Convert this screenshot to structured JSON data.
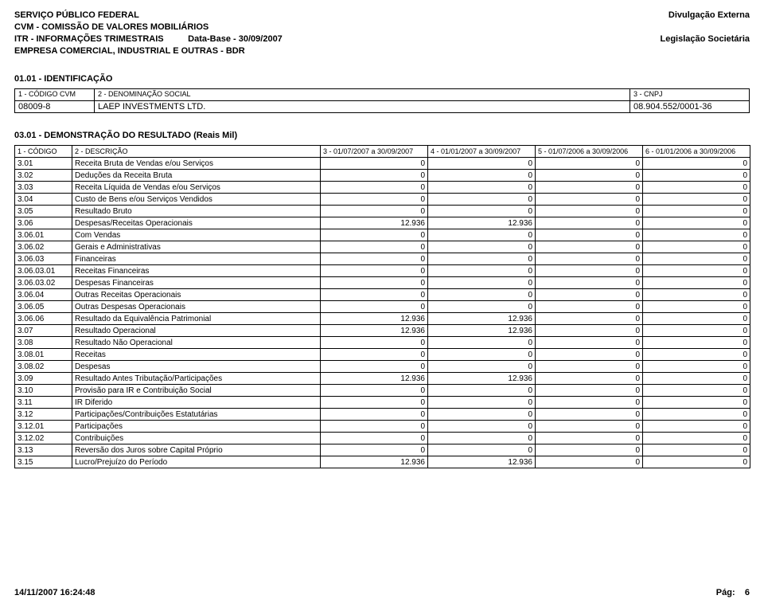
{
  "header": {
    "l1": "SERVIÇO PÚBLICO FEDERAL",
    "l2": "CVM - COMISSÃO DE VALORES MOBILIÁRIOS",
    "l3a": "ITR - INFORMAÇÕES TRIMESTRAIS",
    "l3b": "Data-Base - 30/09/2007",
    "l4": "EMPRESA COMERCIAL, INDUSTRIAL E OUTRAS - BDR",
    "r1": "Divulgação Externa",
    "r2": "Legislação Societária"
  },
  "ident": {
    "title": "01.01 - IDENTIFICAÇÃO",
    "c1_label": "1 - CÓDIGO CVM",
    "c1_value": "08009-8",
    "c2_label": "2 - DENOMINAÇÃO SOCIAL",
    "c2_value": "LAEP INVESTMENTS LTD.",
    "c3_label": "3 - CNPJ",
    "c3_value": "08.904.552/0001-36"
  },
  "result": {
    "title": "03.01 - DEMONSTRAÇÃO DO RESULTADO (Reais Mil)",
    "h1": "1 - CÓDIGO",
    "h2": "2 - DESCRIÇÃO",
    "h3": "3 - 01/07/2007 a 30/09/2007",
    "h4": "4 - 01/01/2007 a 30/09/2007",
    "h5": "5 - 01/07/2006 a 30/09/2006",
    "h6": "6 - 01/01/2006 a 30/09/2006",
    "rows": [
      {
        "code": "3.01",
        "desc": "Receita Bruta de Vendas e/ou Serviços",
        "v1": "0",
        "v2": "0",
        "v3": "0",
        "v4": "0"
      },
      {
        "code": "3.02",
        "desc": "Deduções da Receita Bruta",
        "v1": "0",
        "v2": "0",
        "v3": "0",
        "v4": "0"
      },
      {
        "code": "3.03",
        "desc": "Receita Líquida de Vendas e/ou Serviços",
        "v1": "0",
        "v2": "0",
        "v3": "0",
        "v4": "0"
      },
      {
        "code": "3.04",
        "desc": "Custo de Bens e/ou Serviços Vendidos",
        "v1": "0",
        "v2": "0",
        "v3": "0",
        "v4": "0"
      },
      {
        "code": "3.05",
        "desc": "Resultado Bruto",
        "v1": "0",
        "v2": "0",
        "v3": "0",
        "v4": "0"
      },
      {
        "code": "3.06",
        "desc": "Despesas/Receitas Operacionais",
        "v1": "12.936",
        "v2": "12.936",
        "v3": "0",
        "v4": "0"
      },
      {
        "code": "3.06.01",
        "desc": "Com Vendas",
        "v1": "0",
        "v2": "0",
        "v3": "0",
        "v4": "0"
      },
      {
        "code": "3.06.02",
        "desc": "Gerais e Administrativas",
        "v1": "0",
        "v2": "0",
        "v3": "0",
        "v4": "0"
      },
      {
        "code": "3.06.03",
        "desc": "Financeiras",
        "v1": "0",
        "v2": "0",
        "v3": "0",
        "v4": "0"
      },
      {
        "code": "3.06.03.01",
        "desc": "Receitas Financeiras",
        "v1": "0",
        "v2": "0",
        "v3": "0",
        "v4": "0"
      },
      {
        "code": "3.06.03.02",
        "desc": "Despesas Financeiras",
        "v1": "0",
        "v2": "0",
        "v3": "0",
        "v4": "0"
      },
      {
        "code": "3.06.04",
        "desc": "Outras Receitas Operacionais",
        "v1": "0",
        "v2": "0",
        "v3": "0",
        "v4": "0"
      },
      {
        "code": "3.06.05",
        "desc": "Outras Despesas Operacionais",
        "v1": "0",
        "v2": "0",
        "v3": "0",
        "v4": "0"
      },
      {
        "code": "3.06.06",
        "desc": "Resultado da Equivalência Patrimonial",
        "v1": "12.936",
        "v2": "12.936",
        "v3": "0",
        "v4": "0"
      },
      {
        "code": "3.07",
        "desc": "Resultado Operacional",
        "v1": "12.936",
        "v2": "12.936",
        "v3": "0",
        "v4": "0"
      },
      {
        "code": "3.08",
        "desc": "Resultado Não Operacional",
        "v1": "0",
        "v2": "0",
        "v3": "0",
        "v4": "0"
      },
      {
        "code": "3.08.01",
        "desc": "Receitas",
        "v1": "0",
        "v2": "0",
        "v3": "0",
        "v4": "0"
      },
      {
        "code": "3.08.02",
        "desc": "Despesas",
        "v1": "0",
        "v2": "0",
        "v3": "0",
        "v4": "0"
      },
      {
        "code": "3.09",
        "desc": "Resultado Antes Tributação/Participações",
        "v1": "12.936",
        "v2": "12.936",
        "v3": "0",
        "v4": "0"
      },
      {
        "code": "3.10",
        "desc": "Provisão para IR e Contribuição Social",
        "v1": "0",
        "v2": "0",
        "v3": "0",
        "v4": "0"
      },
      {
        "code": "3.11",
        "desc": "IR Diferido",
        "v1": "0",
        "v2": "0",
        "v3": "0",
        "v4": "0"
      },
      {
        "code": "3.12",
        "desc": "Participações/Contribuições Estatutárias",
        "v1": "0",
        "v2": "0",
        "v3": "0",
        "v4": "0"
      },
      {
        "code": "3.12.01",
        "desc": "Participações",
        "v1": "0",
        "v2": "0",
        "v3": "0",
        "v4": "0"
      },
      {
        "code": "3.12.02",
        "desc": "Contribuições",
        "v1": "0",
        "v2": "0",
        "v3": "0",
        "v4": "0"
      },
      {
        "code": "3.13",
        "desc": "Reversão dos Juros sobre Capital Próprio",
        "v1": "0",
        "v2": "0",
        "v3": "0",
        "v4": "0"
      },
      {
        "code": "3.15",
        "desc": "Lucro/Prejuízo do Período",
        "v1": "12.936",
        "v2": "12.936",
        "v3": "0",
        "v4": "0"
      }
    ]
  },
  "footer": {
    "timestamp": "14/11/2007 16:24:48",
    "page_label": "Pág:",
    "page_num": "6"
  }
}
